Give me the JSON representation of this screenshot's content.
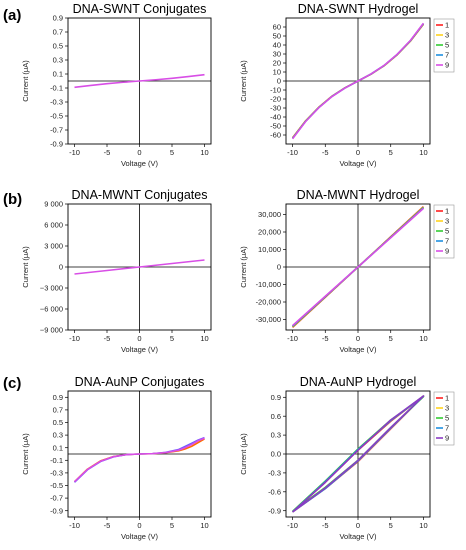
{
  "panel_labels": [
    "(a)",
    "(b)",
    "(c)"
  ],
  "colors": {
    "1": "#ff2020",
    "3": "#ffd21e",
    "5": "#33cc33",
    "7": "#1f8fe0",
    "9": "#d84ee6"
  },
  "chart_data": [
    {
      "type": "line",
      "title": "DNA-SWNT Conjugates",
      "xlabel": "Voltage (V)",
      "ylabel": "Current (μA)",
      "xlim": [
        -11,
        11
      ],
      "ylim": [
        -0.9,
        0.9
      ],
      "xticks": [
        -10,
        -5,
        0,
        5,
        10
      ],
      "yticks": [
        -0.9,
        -0.7,
        -0.5,
        -0.3,
        -0.1,
        0.1,
        0.3,
        0.5,
        0.7,
        0.9
      ],
      "xtick_labels": [
        "-10",
        "-5",
        "0",
        "5",
        "10"
      ],
      "ytick_labels": [
        "-0.9",
        "-0.7",
        "-0.5",
        "-0.3",
        "-0.1",
        "0.1",
        "0.3",
        "0.5",
        "0.7",
        "0.9"
      ],
      "series": [
        {
          "color": "#d84ee6",
          "x": [
            -10,
            -7.5,
            -5,
            -2.5,
            0,
            2.5,
            5,
            7.5,
            10
          ],
          "y": [
            -0.09,
            -0.063,
            -0.039,
            -0.018,
            0,
            0.018,
            0.039,
            0.063,
            0.09
          ]
        }
      ]
    },
    {
      "type": "line",
      "title": "DNA-SWNT Hydrogel",
      "xlabel": "Voltage (V)",
      "ylabel": "Current (μA)",
      "xlim": [
        -11,
        11
      ],
      "ylim": [
        -70,
        70
      ],
      "xticks": [
        -10,
        -5,
        0,
        5,
        10
      ],
      "yticks": [
        -60,
        -50,
        -40,
        -30,
        -20,
        -10,
        0,
        10,
        20,
        30,
        40,
        50,
        60
      ],
      "xtick_labels": [
        "-10",
        "-5",
        "0",
        "5",
        "10"
      ],
      "ytick_labels": [
        "-60",
        "-50",
        "-40",
        "-30",
        "-20",
        "-10",
        "0",
        "10",
        "20",
        "30",
        "40",
        "50",
        "60"
      ],
      "legend": {
        "position": "right",
        "entries": [
          "1",
          "3",
          "5",
          "7",
          "9"
        ]
      },
      "series": [
        {
          "name": "1",
          "color": "#ff2020",
          "x": [
            -10,
            -8,
            -6,
            -4,
            -2,
            0,
            2,
            4,
            6,
            8,
            10
          ],
          "y": [
            -63,
            -44.2,
            -29.2,
            -17,
            -7.6,
            0,
            7.6,
            17,
            29.2,
            44.2,
            63
          ]
        },
        {
          "name": "3",
          "color": "#ffd21e",
          "x": [
            -10,
            -8,
            -6,
            -4,
            -2,
            0,
            2,
            4,
            6,
            8,
            10
          ],
          "y": [
            -63.3,
            -44.4,
            -29.3,
            -17.1,
            -7.7,
            0,
            7.7,
            17.1,
            29.3,
            44.4,
            63.3
          ]
        },
        {
          "name": "5",
          "color": "#33cc33",
          "x": [
            -10,
            -8,
            -6,
            -4,
            -2,
            0,
            2,
            4,
            6,
            8,
            10
          ],
          "y": [
            -63.6,
            -44.6,
            -29.5,
            -17.2,
            -7.7,
            0,
            7.7,
            17.2,
            29.5,
            44.6,
            63.6
          ]
        },
        {
          "name": "7",
          "color": "#1f8fe0",
          "x": [
            -10,
            -8,
            -6,
            -4,
            -2,
            0,
            2,
            4,
            6,
            8,
            10
          ],
          "y": [
            -63.9,
            -44.8,
            -29.6,
            -17.3,
            -7.8,
            0,
            7.8,
            17.3,
            29.6,
            44.8,
            63.9
          ]
        },
        {
          "name": "9",
          "color": "#d84ee6",
          "x": [
            -10,
            -8,
            -6,
            -4,
            -2,
            0,
            2,
            4,
            6,
            8,
            10
          ],
          "y": [
            -64.2,
            -45,
            -29.8,
            -17.4,
            -7.8,
            0,
            7.8,
            17.4,
            29.8,
            45,
            64.2
          ]
        }
      ]
    },
    {
      "type": "line",
      "title": "DNA-MWNT Conjugates",
      "xlabel": "Voltage (V)",
      "ylabel": "Current (μA)",
      "xlim": [
        -11,
        11
      ],
      "ylim": [
        -9000,
        9000
      ],
      "xticks": [
        -10,
        -5,
        0,
        5,
        10
      ],
      "yticks": [
        -9000,
        -6000,
        -3000,
        0,
        3000,
        6000,
        9000
      ],
      "xtick_labels": [
        "-10",
        "-5",
        "0",
        "5",
        "10"
      ],
      "ytick_labels": [
        "−9 000",
        "−6 000",
        "−3 000",
        "0",
        "3 000",
        "6 000",
        "9 000"
      ],
      "series": [
        {
          "color": "#d84ee6",
          "x": [
            -10,
            -5,
            0,
            5,
            10
          ],
          "y": [
            -1000,
            -500,
            0,
            500,
            1000
          ]
        }
      ]
    },
    {
      "type": "line",
      "title": "DNA-MWNT Hydrogel",
      "xlabel": "Voltage (V)",
      "ylabel": "Current (μA)",
      "xlim": [
        -11,
        11
      ],
      "ylim": [
        -36000,
        36000
      ],
      "xticks": [
        -10,
        -5,
        0,
        5,
        10
      ],
      "yticks": [
        -30000,
        -20000,
        -10000,
        0,
        10000,
        20000,
        30000
      ],
      "xtick_labels": [
        "-10",
        "-5",
        "0",
        "5",
        "10"
      ],
      "ytick_labels": [
        "-30,000",
        "-20,000",
        "-10,000",
        "0",
        "10,000",
        "20,000",
        "30,000"
      ],
      "legend": {
        "position": "right",
        "entries": [
          "1",
          "3",
          "5",
          "7",
          "9"
        ]
      },
      "series": [
        {
          "name": "1",
          "color": "#ff2020",
          "x": [
            -10,
            -5,
            0,
            5,
            10
          ],
          "y": [
            -34500,
            -17300,
            0,
            17300,
            34500
          ]
        },
        {
          "name": "3",
          "color": "#ffd21e",
          "x": [
            -10,
            -5,
            0,
            5,
            10
          ],
          "y": [
            -34200,
            -17100,
            0,
            17100,
            34200
          ]
        },
        {
          "name": "5",
          "color": "#33cc33",
          "x": [
            -10,
            -5,
            0,
            5,
            10
          ],
          "y": [
            -34000,
            -17000,
            0,
            17000,
            34000
          ]
        },
        {
          "name": "7",
          "color": "#1f8fe0",
          "x": [
            -10,
            -5,
            0,
            5,
            10
          ],
          "y": [
            -33800,
            -16900,
            0,
            16900,
            33800
          ]
        },
        {
          "name": "9",
          "color": "#d84ee6",
          "x": [
            -10,
            -5,
            0,
            5,
            10
          ],
          "y": [
            -33500,
            -16700,
            0,
            16700,
            33500
          ]
        }
      ]
    },
    {
      "type": "line",
      "title": "DNA-AuNP Conjugates",
      "xlabel": "Voltage (V)",
      "ylabel": "Current (μA)",
      "xlim": [
        -11,
        11
      ],
      "ylim": [
        -1,
        1
      ],
      "xticks": [
        -10,
        -5,
        0,
        5,
        10
      ],
      "yticks": [
        -0.9,
        -0.7,
        -0.5,
        -0.3,
        -0.1,
        0.1,
        0.3,
        0.5,
        0.7,
        0.9
      ],
      "xtick_labels": [
        "-10",
        "-5",
        "0",
        "5",
        "10"
      ],
      "ytick_labels": [
        "-0.9",
        "-0.7",
        "-0.5",
        "-0.3",
        "-0.1",
        "0.1",
        "0.3",
        "0.5",
        "0.7",
        "0.9"
      ],
      "series": [
        {
          "color": "#ff6a00",
          "x": [
            -10,
            -8,
            -6,
            -4,
            -2,
            0,
            2,
            4,
            6,
            7,
            8,
            9,
            10
          ],
          "y": [
            -0.44,
            -0.24,
            -0.11,
            -0.04,
            -0.01,
            0,
            0.005,
            0.02,
            0.05,
            0.08,
            0.12,
            0.18,
            0.24
          ]
        },
        {
          "color": "#6a5cff",
          "x": [
            -10,
            -8,
            -6,
            -4,
            -2,
            0,
            2,
            4,
            6,
            7,
            8,
            9,
            10
          ],
          "y": [
            -0.45,
            -0.25,
            -0.12,
            -0.045,
            -0.01,
            0,
            0.006,
            0.025,
            0.07,
            0.12,
            0.17,
            0.22,
            0.26
          ]
        },
        {
          "color": "#d84ee6",
          "x": [
            -10,
            -8,
            -6,
            -4,
            -2,
            0,
            2,
            4,
            6,
            7,
            8,
            9,
            10
          ],
          "y": [
            -0.44,
            -0.245,
            -0.115,
            -0.042,
            -0.01,
            0,
            0.006,
            0.022,
            0.06,
            0.1,
            0.15,
            0.21,
            0.25
          ]
        }
      ]
    },
    {
      "type": "line",
      "title": "DNA-AuNP Hydrogel",
      "xlabel": "Voltage (V)",
      "ylabel": "Current (μA)",
      "xlim": [
        -11,
        11
      ],
      "ylim": [
        -1,
        1
      ],
      "xticks": [
        -10,
        -5,
        0,
        5,
        10
      ],
      "yticks": [
        -0.9,
        -0.6,
        -0.3,
        0,
        0.3,
        0.6,
        0.9
      ],
      "xtick_labels": [
        "-10",
        "-5",
        "0",
        "5",
        "10"
      ],
      "ytick_labels": [
        "-0.9",
        "-0.6",
        "-0.3",
        "0.0",
        "0.3",
        "0.6",
        "0.9"
      ],
      "legend": {
        "position": "right",
        "entries": [
          "1",
          "3",
          "5",
          "7",
          "9"
        ]
      },
      "series": [
        {
          "name": "1",
          "color": "#ff2020",
          "x": [
            -10,
            -5,
            0,
            5,
            10,
            5,
            0,
            -5,
            -10
          ],
          "y": [
            -0.92,
            -0.55,
            -0.12,
            0.4,
            0.92,
            0.52,
            0.06,
            -0.45,
            -0.92
          ]
        },
        {
          "name": "3",
          "color": "#ffd21e",
          "x": [
            -10,
            -5,
            0,
            5,
            10,
            5,
            0,
            -5,
            -10
          ],
          "y": [
            -0.92,
            -0.54,
            -0.11,
            0.41,
            0.92,
            0.53,
            0.07,
            -0.44,
            -0.92
          ]
        },
        {
          "name": "5",
          "color": "#33cc33",
          "x": [
            -10,
            -5,
            0,
            5,
            10,
            5,
            0,
            -5,
            -10
          ],
          "y": [
            -0.91,
            -0.53,
            -0.1,
            0.42,
            0.91,
            0.54,
            0.08,
            -0.43,
            -0.91
          ]
        },
        {
          "name": "7",
          "color": "#1f8fe0",
          "x": [
            -10,
            -5,
            0,
            5,
            10,
            5,
            0,
            -5,
            -10
          ],
          "y": [
            -0.92,
            -0.55,
            -0.11,
            0.41,
            0.92,
            0.53,
            0.07,
            -0.44,
            -0.92
          ]
        },
        {
          "name": "9",
          "color": "#8a3cc4",
          "x": [
            -10,
            -5,
            0,
            5,
            10,
            5,
            0,
            -5,
            -10
          ],
          "y": [
            -0.92,
            -0.54,
            -0.1,
            0.42,
            0.92,
            0.54,
            0.06,
            -0.45,
            -0.92
          ]
        }
      ]
    }
  ]
}
